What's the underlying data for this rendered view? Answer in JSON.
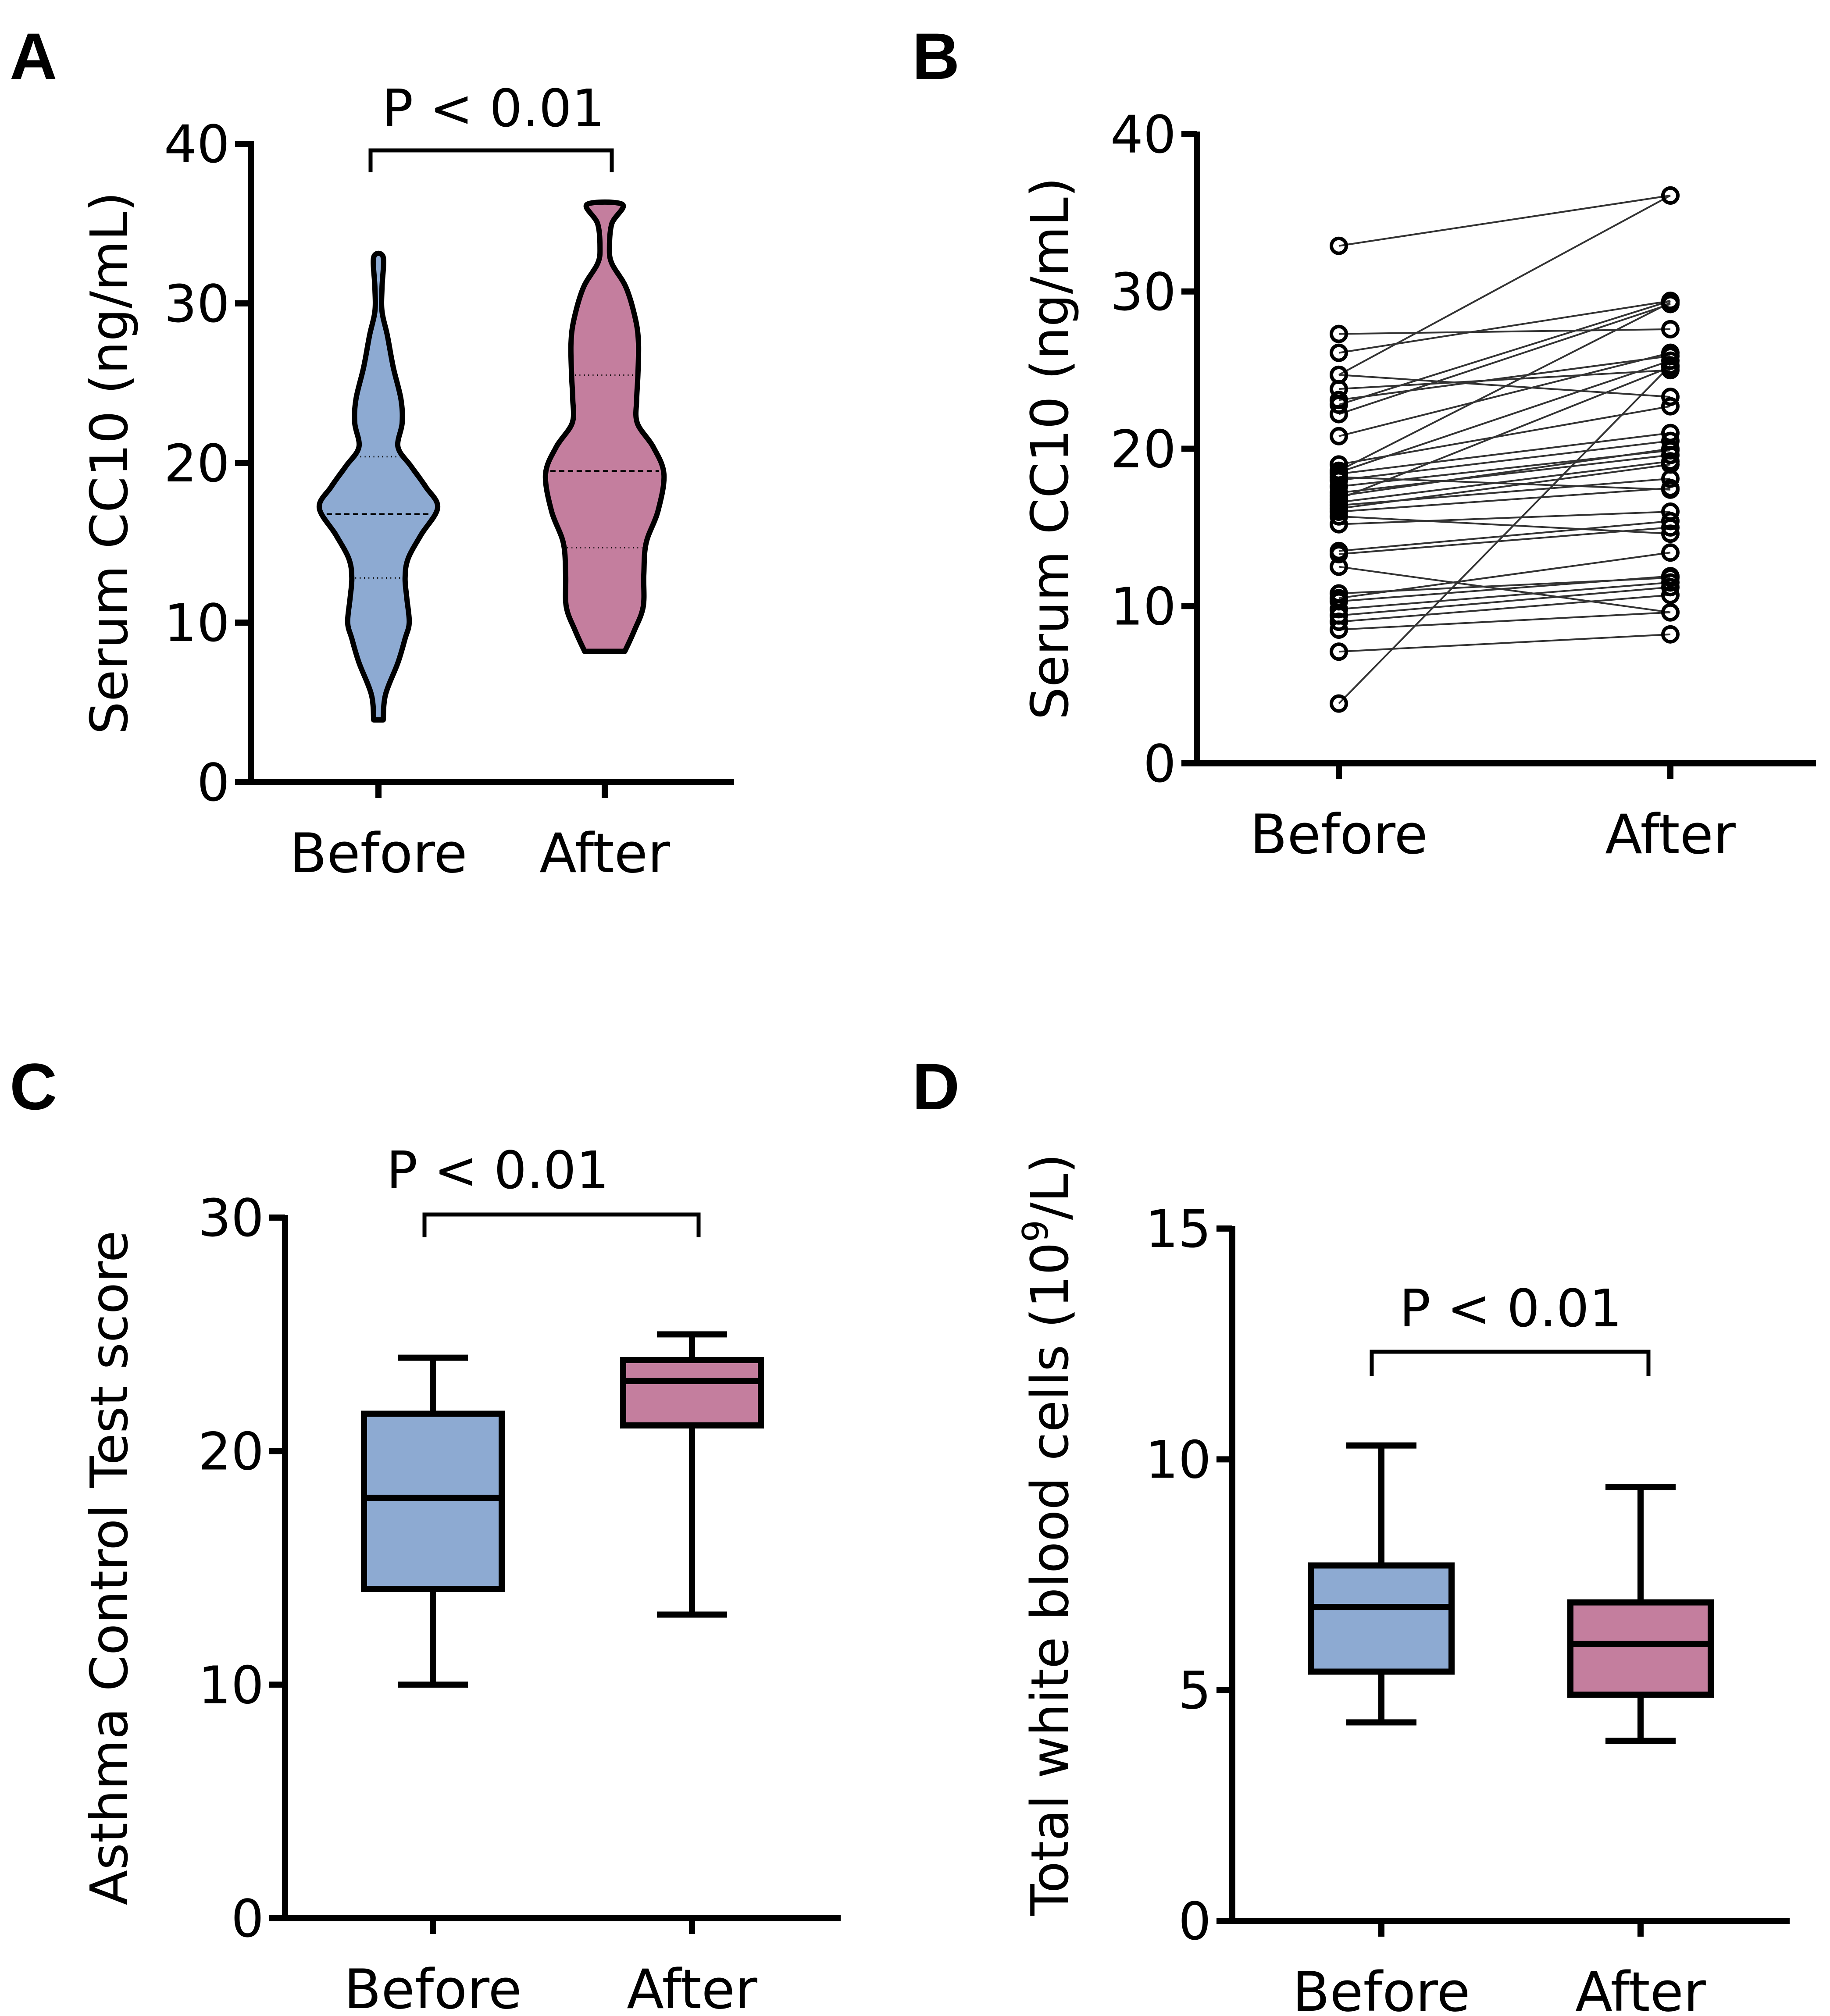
{
  "figure": {
    "panels": [
      "A",
      "B",
      "C",
      "D"
    ]
  },
  "colors": {
    "before": "#8DAAD2",
    "after": "#C47E9E",
    "line": "#000000",
    "pair_line": "#333333"
  },
  "chart_data": [
    {
      "panel": "A",
      "type": "violin",
      "title": "",
      "xlabel": "",
      "ylabel": "Serum CC10 (ng/mL)",
      "ylim": [
        0,
        40
      ],
      "yticks": [
        0,
        10,
        20,
        30,
        40
      ],
      "categories": [
        "Before",
        "After"
      ],
      "annotation": "P < 0.01",
      "series": [
        {
          "name": "Before",
          "min": 3.9,
          "max": 32.9,
          "q1": 12.8,
          "median": 16.8,
          "q3": 20.4,
          "density_profile": [
            [
              3.9,
              0.08
            ],
            [
              5.5,
              0.12
            ],
            [
              7.5,
              0.33
            ],
            [
              9,
              0.45
            ],
            [
              10,
              0.52
            ],
            [
              11.5,
              0.48
            ],
            [
              12.8,
              0.45
            ],
            [
              14,
              0.5
            ],
            [
              15.5,
              0.72
            ],
            [
              17.2,
              1.0
            ],
            [
              18.5,
              0.8
            ],
            [
              19.8,
              0.55
            ],
            [
              21,
              0.33
            ],
            [
              22.5,
              0.4
            ],
            [
              24,
              0.38
            ],
            [
              26,
              0.25
            ],
            [
              28,
              0.15
            ],
            [
              29.5,
              0.06
            ],
            [
              31,
              0.06
            ],
            [
              32.9,
              0.08
            ]
          ]
        },
        {
          "name": "After",
          "min": 8.2,
          "max": 36.2,
          "q1": 14.7,
          "median": 19.5,
          "q3": 25.5,
          "density_profile": [
            [
              8.2,
              0.34
            ],
            [
              9.5,
              0.5
            ],
            [
              11,
              0.65
            ],
            [
              13,
              0.66
            ],
            [
              15,
              0.7
            ],
            [
              17,
              0.9
            ],
            [
              19.3,
              1.0
            ],
            [
              21,
              0.82
            ],
            [
              22.5,
              0.55
            ],
            [
              24,
              0.54
            ],
            [
              25.5,
              0.56
            ],
            [
              27.5,
              0.57
            ],
            [
              29,
              0.52
            ],
            [
              31,
              0.36
            ],
            [
              32.5,
              0.12
            ],
            [
              33.5,
              0.08
            ],
            [
              35,
              0.12
            ],
            [
              36.2,
              0.3
            ]
          ]
        }
      ]
    },
    {
      "panel": "B",
      "type": "line",
      "subtype": "paired-points",
      "title": "",
      "xlabel": "",
      "ylabel": "Serum CC10 (ng/mL)",
      "ylim": [
        0,
        40
      ],
      "yticks": [
        0,
        10,
        20,
        30,
        40
      ],
      "categories": [
        "Before",
        "After"
      ],
      "pairs": [
        [
          32.9,
          36.1
        ],
        [
          24.7,
          36.1
        ],
        [
          27.3,
          27.6
        ],
        [
          26.1,
          29.4
        ],
        [
          24.7,
          23.3
        ],
        [
          23.8,
          25.0
        ],
        [
          23.1,
          25.9
        ],
        [
          22.8,
          29.4
        ],
        [
          22.2,
          29.2
        ],
        [
          20.8,
          26.1
        ],
        [
          19.0,
          22.7
        ],
        [
          18.6,
          29.3
        ],
        [
          18.5,
          25.6
        ],
        [
          18.4,
          21.0
        ],
        [
          18.2,
          17.4
        ],
        [
          18.0,
          20.5
        ],
        [
          17.6,
          19.9
        ],
        [
          17.2,
          19.6
        ],
        [
          17.0,
          20.0
        ],
        [
          16.8,
          25.2
        ],
        [
          16.6,
          19.2
        ],
        [
          16.4,
          18.1
        ],
        [
          16.2,
          19.0
        ],
        [
          16.0,
          17.5
        ],
        [
          15.7,
          14.6
        ],
        [
          15.2,
          16.0
        ],
        [
          13.5,
          15.4
        ],
        [
          13.3,
          15.0
        ],
        [
          12.5,
          9.6
        ],
        [
          10.8,
          11.8
        ],
        [
          10.5,
          13.4
        ],
        [
          10.3,
          11.9
        ],
        [
          9.8,
          11.5
        ],
        [
          9.4,
          11.2
        ],
        [
          9.0,
          10.7
        ],
        [
          8.5,
          9.6
        ],
        [
          7.1,
          8.2
        ],
        [
          3.8,
          25.3
        ]
      ]
    },
    {
      "panel": "C",
      "type": "box",
      "title": "",
      "xlabel": "",
      "ylabel": "Asthma Control Test score",
      "ylim": [
        0,
        30
      ],
      "yticks": [
        0,
        10,
        20,
        30
      ],
      "categories": [
        "Before",
        "After"
      ],
      "annotation": "P < 0.01",
      "series": [
        {
          "name": "Before",
          "whisker_low": 10,
          "q1": 14.1,
          "median": 18.0,
          "q3": 21.6,
          "whisker_high": 24
        },
        {
          "name": "After",
          "whisker_low": 13,
          "q1": 21.1,
          "median": 23.0,
          "q3": 23.9,
          "whisker_high": 25
        }
      ]
    },
    {
      "panel": "D",
      "type": "box",
      "title": "",
      "xlabel": "",
      "ylabel": "Total white blood cells (10",
      "ylabel_superscript": "9",
      "ylabel_suffix": "/L)",
      "ylim": [
        0,
        15
      ],
      "yticks": [
        0,
        5,
        10,
        15
      ],
      "categories": [
        "Before",
        "After"
      ],
      "annotation": "P < 0.01",
      "series": [
        {
          "name": "Before",
          "whisker_low": 4.3,
          "q1": 5.4,
          "median": 6.8,
          "q3": 7.7,
          "whisker_high": 10.3
        },
        {
          "name": "After",
          "whisker_low": 3.9,
          "q1": 4.9,
          "median": 6.0,
          "q3": 6.9,
          "whisker_high": 9.4
        }
      ]
    }
  ]
}
